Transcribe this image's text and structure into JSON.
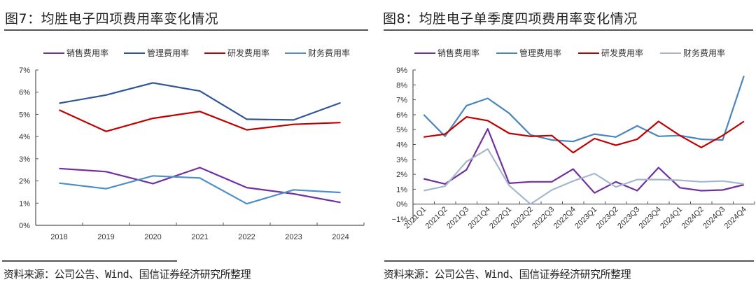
{
  "figures": [
    {
      "title": "图7：均胜电子四项费用率变化情况",
      "source": "资料来源：公司公告、Wind、国信证券经济研究所整理"
    },
    {
      "title": "图8：均胜电子单季度四项费用率变化情况",
      "source": "资料来源：公司公告、Wind、国信证券经济研究所整理"
    }
  ],
  "chart_data": [
    {
      "type": "line",
      "title": "均胜电子四项费用率变化情况",
      "xlabel": "",
      "ylabel": "",
      "categories": [
        "2018",
        "2019",
        "2020",
        "2021",
        "2022",
        "2023",
        "2024"
      ],
      "ylim": [
        0,
        7
      ],
      "yticks": [
        "0%",
        "1%",
        "2%",
        "3%",
        "4%",
        "5%",
        "6%",
        "7%"
      ],
      "grid": false,
      "legend_position": "top",
      "series": [
        {
          "name": "销售费用率",
          "color": "#7030A0",
          "values": [
            2.56,
            2.42,
            1.88,
            2.6,
            1.7,
            1.42,
            1.03
          ]
        },
        {
          "name": "管理费用率",
          "color": "#2F5597",
          "values": [
            5.5,
            5.87,
            6.42,
            6.05,
            4.78,
            4.75,
            5.52
          ]
        },
        {
          "name": "研发费用率",
          "color": "#C00000",
          "values": [
            5.2,
            4.23,
            4.82,
            5.13,
            4.3,
            4.55,
            4.63
          ]
        },
        {
          "name": "财务费用率",
          "color": "#4F8EC9",
          "values": [
            1.9,
            1.65,
            2.23,
            2.13,
            0.97,
            1.6,
            1.48
          ]
        }
      ]
    },
    {
      "type": "line",
      "title": "均胜电子单季度四项费用率变化情况",
      "xlabel": "",
      "ylabel": "",
      "categories": [
        "2021Q1",
        "2021Q2",
        "2021Q3",
        "2021Q4",
        "2022Q1",
        "2022Q2",
        "2022Q3",
        "2022Q4",
        "2023Q1",
        "2023Q2",
        "2023Q3",
        "2023Q4",
        "2024Q1",
        "2024Q2",
        "2024Q3",
        "2024Q4"
      ],
      "ylim": [
        -1,
        9
      ],
      "yticks": [
        "−1%",
        "0%",
        "1%",
        "2%",
        "3%",
        "4%",
        "5%",
        "6%",
        "7%",
        "8%",
        "9%"
      ],
      "grid": false,
      "legend_position": "top",
      "series": [
        {
          "name": "销售费用率",
          "color": "#7030A0",
          "values": [
            1.7,
            1.35,
            2.3,
            5.05,
            1.4,
            1.5,
            1.5,
            2.35,
            0.75,
            1.5,
            0.9,
            2.45,
            1.1,
            0.9,
            0.95,
            1.3
          ]
        },
        {
          "name": "管理费用率",
          "color": "#4A86BE",
          "values": [
            6.0,
            4.55,
            6.6,
            7.1,
            6.1,
            4.65,
            4.3,
            4.2,
            4.7,
            4.5,
            5.25,
            4.55,
            4.6,
            4.35,
            4.3,
            8.6
          ]
        },
        {
          "name": "研发费用率",
          "color": "#C00000",
          "values": [
            4.5,
            4.7,
            5.85,
            5.6,
            4.75,
            4.55,
            4.6,
            3.45,
            4.4,
            3.95,
            4.35,
            5.55,
            4.6,
            3.8,
            4.6,
            5.55
          ]
        },
        {
          "name": "财务费用率",
          "color": "#A5B8CB",
          "values": [
            0.9,
            1.2,
            2.85,
            3.7,
            1.25,
            0.0,
            0.95,
            1.55,
            2.05,
            1.15,
            1.65,
            1.65,
            1.6,
            1.5,
            1.55,
            1.35
          ]
        }
      ]
    }
  ]
}
